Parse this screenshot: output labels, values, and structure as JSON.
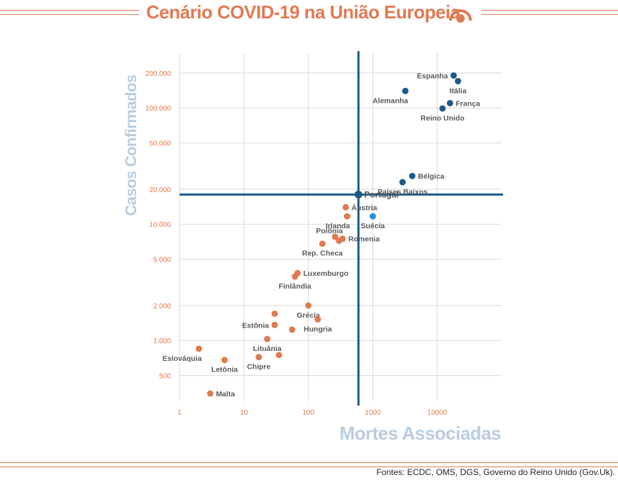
{
  "title": "Cenário COVID-19 na União Europeia",
  "source": "Fontes: ECDC, OMS, DGS, Governo do Reino Unido (Gov.Uk).",
  "colors": {
    "accent": "#e07a52",
    "dark_blue": "#1c5a8a",
    "light_blue": "#2a8fd4",
    "axis_title": "#b7cde0"
  },
  "icon": "signal-arc-icon",
  "chart_data": {
    "type": "scatter",
    "xlabel": "Mortes Associadas",
    "ylabel": "Casos Confirmados",
    "xscale": "log",
    "yscale": "log",
    "xlim": [
      1,
      100000
    ],
    "ylim": [
      300,
      300000
    ],
    "xticks": [
      {
        "value": 1,
        "label": "1"
      },
      {
        "value": 10,
        "label": "10"
      },
      {
        "value": 100,
        "label": "100"
      },
      {
        "value": 1000,
        "label": "1000"
      },
      {
        "value": 10000,
        "label": "10000"
      }
    ],
    "yticks": [
      {
        "value": 500,
        "label": "500"
      },
      {
        "value": 1000,
        "label": "1.000"
      },
      {
        "value": 2000,
        "label": "2.000"
      },
      {
        "value": 5000,
        "label": "5.000"
      },
      {
        "value": 10000,
        "label": "10.000"
      },
      {
        "value": 20000,
        "label": "20.000"
      },
      {
        "value": 50000,
        "label": "50.000"
      },
      {
        "value": 100000,
        "label": "100.000"
      },
      {
        "value": 200000,
        "label": "200.000"
      }
    ],
    "grid": true,
    "reference": {
      "x": 599,
      "y": 18000
    },
    "points": [
      {
        "label": "Espanha",
        "x": 18000,
        "y": 190000,
        "group": "high",
        "label_pos": "left"
      },
      {
        "label": "Itália",
        "x": 21000,
        "y": 170000,
        "group": "high",
        "label_pos": "below"
      },
      {
        "label": "Alemanha",
        "x": 3200,
        "y": 140000,
        "group": "high",
        "label_pos": "below-left"
      },
      {
        "label": "França",
        "x": 15800,
        "y": 110000,
        "group": "high",
        "label_pos": "right"
      },
      {
        "label": "Reino Unido",
        "x": 12100,
        "y": 99000,
        "group": "high",
        "label_pos": "below"
      },
      {
        "label": "Bélgica",
        "x": 4100,
        "y": 26000,
        "group": "high",
        "label_pos": "right"
      },
      {
        "label": "Países Baixos",
        "x": 2900,
        "y": 23000,
        "group": "high",
        "label_pos": "below"
      },
      {
        "label": "Portugal",
        "x": 599,
        "y": 18000,
        "group": "reference",
        "label_pos": "right"
      },
      {
        "label": "Suécia",
        "x": 1000,
        "y": 11700,
        "group": "mid",
        "label_pos": "below"
      },
      {
        "label": "Áustria",
        "x": 380,
        "y": 14000,
        "group": "low",
        "label_pos": "right"
      },
      {
        "label": "Irlanda",
        "x": 400,
        "y": 11700,
        "group": "low",
        "label_pos": "below-left"
      },
      {
        "label": "Polônia",
        "x": 260,
        "y": 7800,
        "group": "low",
        "label_pos": "above-left"
      },
      {
        "label": "Romenia",
        "x": 340,
        "y": 7500,
        "group": "low",
        "label_pos": "right"
      },
      {
        "label": "",
        "x": 300,
        "y": 7200,
        "group": "low",
        "label_pos": "none"
      },
      {
        "label": "Rep. Checa",
        "x": 165,
        "y": 6800,
        "group": "low",
        "label_pos": "below"
      },
      {
        "label": "Luxemburgo",
        "x": 68,
        "y": 3800,
        "group": "low",
        "label_pos": "right"
      },
      {
        "label": "Finlândia",
        "x": 62,
        "y": 3550,
        "group": "low",
        "label_pos": "below"
      },
      {
        "label": "Grécia",
        "x": 100,
        "y": 2000,
        "group": "low",
        "label_pos": "below"
      },
      {
        "label": "",
        "x": 30,
        "y": 1700,
        "group": "low",
        "label_pos": "none"
      },
      {
        "label": "Hungria",
        "x": 140,
        "y": 1520,
        "group": "low",
        "label_pos": "below"
      },
      {
        "label": "Estônia",
        "x": 30,
        "y": 1360,
        "group": "low",
        "label_pos": "left"
      },
      {
        "label": "",
        "x": 56,
        "y": 1240,
        "group": "low",
        "label_pos": "none"
      },
      {
        "label": "Lituânia",
        "x": 23,
        "y": 1030,
        "group": "low",
        "label_pos": "below"
      },
      {
        "label": "Eslováquia",
        "x": 2,
        "y": 850,
        "group": "low",
        "label_pos": "below-left"
      },
      {
        "label": "Letônia",
        "x": 5,
        "y": 680,
        "group": "low",
        "label_pos": "below"
      },
      {
        "label": "Chipre",
        "x": 17,
        "y": 720,
        "group": "low",
        "label_pos": "below"
      },
      {
        "label": "",
        "x": 35,
        "y": 750,
        "group": "low",
        "label_pos": "none"
      },
      {
        "label": "Malta",
        "x": 3,
        "y": 350,
        "group": "low",
        "label_pos": "right"
      }
    ]
  }
}
